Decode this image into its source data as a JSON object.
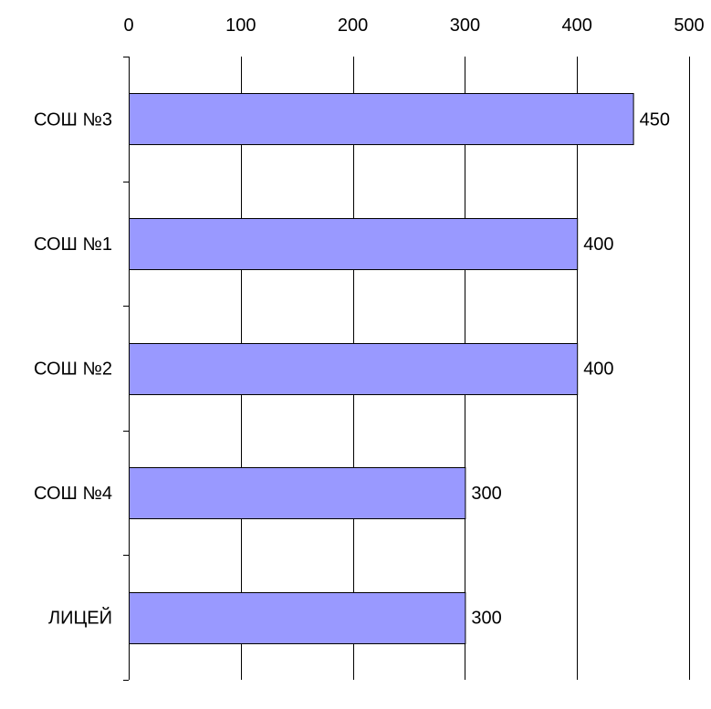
{
  "chart_data": {
    "type": "bar",
    "orientation": "horizontal",
    "categories": [
      "СОШ №3",
      "СОШ №1",
      "СОШ №2",
      "СОШ №4",
      "ЛИЦЕЙ"
    ],
    "series": [
      {
        "values": [
          450,
          400,
          400,
          300,
          300
        ]
      }
    ],
    "data_labels": [
      "450",
      "400",
      "400",
      "300",
      "300"
    ],
    "x_axis": {
      "position": "top",
      "ticks": [
        0,
        100,
        200,
        300,
        400,
        500
      ],
      "tick_labels": [
        "0",
        "100",
        "200",
        "300",
        "400",
        "500"
      ],
      "range": [
        0,
        500
      ]
    },
    "grid": true,
    "legend": false,
    "colors": {
      "bar_fill": "#9999ff",
      "bar_stroke": "#000000",
      "gridline": "#000000",
      "background": "#ffffff"
    }
  }
}
